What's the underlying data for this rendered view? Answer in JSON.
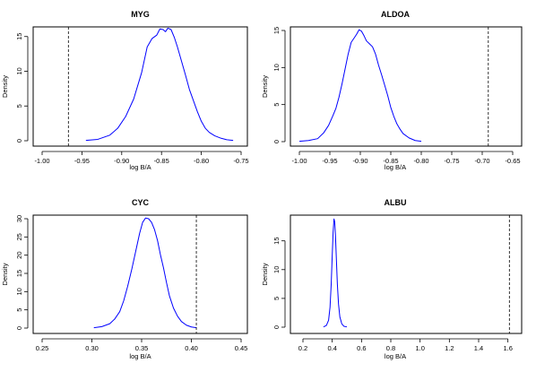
{
  "chart_data": [
    {
      "type": "line",
      "title": "MYG",
      "xlabel": "log B/A",
      "ylabel": "Density",
      "xlim": [
        -1.0,
        -0.75
      ],
      "ylim": [
        0,
        16
      ],
      "x_ticks": [
        -1.0,
        -0.95,
        -0.9,
        -0.85,
        -0.8,
        -0.75
      ],
      "x_tick_labels": [
        "-1.00",
        "-0.95",
        "-0.90",
        "-0.85",
        "-0.80",
        "-0.75"
      ],
      "y_ticks": [
        0,
        5,
        10,
        15
      ],
      "y_tick_labels": [
        "0",
        "5",
        "10",
        "15"
      ],
      "series": [
        {
          "color": "#0000ff",
          "x": [
            -0.945,
            -0.93,
            -0.915,
            -0.905,
            -0.895,
            -0.885,
            -0.875,
            -0.868,
            -0.862,
            -0.856,
            -0.852,
            -0.848,
            -0.845,
            -0.842,
            -0.838,
            -0.834,
            -0.83,
            -0.825,
            -0.82,
            -0.815,
            -0.81,
            -0.805,
            -0.8,
            -0.795,
            -0.79,
            -0.783,
            -0.775,
            -0.768,
            -0.76
          ],
          "y": [
            0.05,
            0.2,
            0.8,
            1.8,
            3.5,
            6.0,
            9.8,
            13.5,
            14.7,
            15.2,
            16.1,
            16.0,
            15.7,
            16.2,
            16.0,
            14.9,
            13.5,
            11.5,
            9.5,
            7.4,
            5.8,
            4.2,
            2.8,
            1.8,
            1.2,
            0.7,
            0.35,
            0.15,
            0.05
          ]
        }
      ],
      "reference_lines": [
        {
          "orientation": "vertical",
          "x": -0.967,
          "style": "dashed",
          "color": "#000000"
        }
      ],
      "grid": false
    },
    {
      "type": "line",
      "title": "ALDOA",
      "xlabel": "log B/A",
      "ylabel": "Density",
      "xlim": [
        -1.0,
        -0.65
      ],
      "ylim": [
        0,
        15
      ],
      "x_ticks": [
        -1.0,
        -0.95,
        -0.9,
        -0.85,
        -0.8,
        -0.75,
        -0.7,
        -0.65
      ],
      "x_tick_labels": [
        "-1.00",
        "-0.95",
        "-0.90",
        "-0.85",
        "-0.80",
        "-0.75",
        "-0.70",
        "-0.65"
      ],
      "y_ticks": [
        0,
        5,
        10,
        15
      ],
      "y_tick_labels": [
        "0",
        "5",
        "10",
        "15"
      ],
      "series": [
        {
          "color": "#0000ff",
          "x": [
            -1.0,
            -0.985,
            -0.97,
            -0.96,
            -0.952,
            -0.945,
            -0.94,
            -0.935,
            -0.93,
            -0.925,
            -0.92,
            -0.915,
            -0.91,
            -0.906,
            -0.902,
            -0.898,
            -0.894,
            -0.89,
            -0.885,
            -0.88,
            -0.875,
            -0.87,
            -0.865,
            -0.86,
            -0.855,
            -0.85,
            -0.845,
            -0.84,
            -0.835,
            -0.83,
            -0.82,
            -0.81,
            -0.8
          ],
          "y": [
            0.05,
            0.15,
            0.4,
            1.2,
            2.2,
            3.5,
            4.5,
            6.0,
            7.8,
            9.8,
            11.8,
            13.4,
            14.0,
            14.5,
            15.1,
            14.9,
            14.3,
            13.6,
            13.2,
            12.8,
            11.8,
            10.3,
            9.0,
            7.6,
            6.2,
            4.6,
            3.4,
            2.4,
            1.7,
            1.1,
            0.5,
            0.15,
            0.05
          ]
        }
      ],
      "reference_lines": [
        {
          "orientation": "vertical",
          "x": -0.69,
          "style": "dashed",
          "color": "#000000"
        }
      ],
      "grid": false
    },
    {
      "type": "line",
      "title": "CYC",
      "xlabel": "log B/A",
      "ylabel": "Density",
      "xlim": [
        0.25,
        0.45
      ],
      "ylim": [
        0,
        30
      ],
      "x_ticks": [
        0.25,
        0.3,
        0.35,
        0.4,
        0.45
      ],
      "x_tick_labels": [
        "0.25",
        "0.30",
        "0.35",
        "0.40",
        "0.45"
      ],
      "y_ticks": [
        0,
        5,
        10,
        15,
        20,
        25,
        30
      ],
      "y_tick_labels": [
        "0",
        "5",
        "10",
        "15",
        "20",
        "25",
        "30"
      ],
      "series": [
        {
          "color": "#0000ff",
          "x": [
            0.302,
            0.31,
            0.318,
            0.323,
            0.328,
            0.332,
            0.336,
            0.34,
            0.344,
            0.348,
            0.351,
            0.354,
            0.357,
            0.36,
            0.363,
            0.366,
            0.369,
            0.372,
            0.375,
            0.378,
            0.382,
            0.386,
            0.39,
            0.395,
            0.4,
            0.405
          ],
          "y": [
            0.1,
            0.4,
            1.2,
            2.5,
            4.5,
            7.5,
            11.5,
            16.0,
            21.0,
            26.0,
            29.0,
            30.2,
            30.0,
            29.0,
            27.0,
            24.0,
            20.0,
            16.5,
            12.5,
            8.8,
            5.5,
            3.3,
            1.8,
            0.8,
            0.3,
            0.1
          ]
        }
      ],
      "reference_lines": [
        {
          "orientation": "vertical",
          "x": 0.405,
          "style": "dashed",
          "color": "#000000"
        }
      ],
      "grid": false
    },
    {
      "type": "line",
      "title": "ALBU",
      "xlabel": "log B/A",
      "ylabel": "Density",
      "xlim": [
        0.2,
        1.7
      ],
      "ylim": [
        0,
        19
      ],
      "x_ticks": [
        0.2,
        0.4,
        0.6,
        0.8,
        1.0,
        1.2,
        1.4,
        1.6
      ],
      "x_tick_labels": [
        "0.2",
        "0.4",
        "0.6",
        "0.8",
        "1.0",
        "1.2",
        "1.4",
        "1.6"
      ],
      "y_ticks": [
        0,
        5,
        10,
        15
      ],
      "y_tick_labels": [
        "0",
        "5",
        "10",
        "15"
      ],
      "series": [
        {
          "color": "#0000ff",
          "x": [
            0.34,
            0.36,
            0.375,
            0.385,
            0.393,
            0.4,
            0.406,
            0.412,
            0.417,
            0.422,
            0.428,
            0.435,
            0.443,
            0.452,
            0.465,
            0.48,
            0.5
          ],
          "y": [
            0.05,
            0.3,
            1.2,
            3.5,
            7.5,
            12.5,
            16.5,
            18.8,
            18.3,
            16.0,
            12.0,
            7.5,
            4.0,
            1.8,
            0.6,
            0.15,
            0.05
          ]
        }
      ],
      "reference_lines": [
        {
          "orientation": "vertical",
          "x": 1.61,
          "style": "dashed",
          "color": "#000000"
        }
      ],
      "grid": false
    }
  ]
}
